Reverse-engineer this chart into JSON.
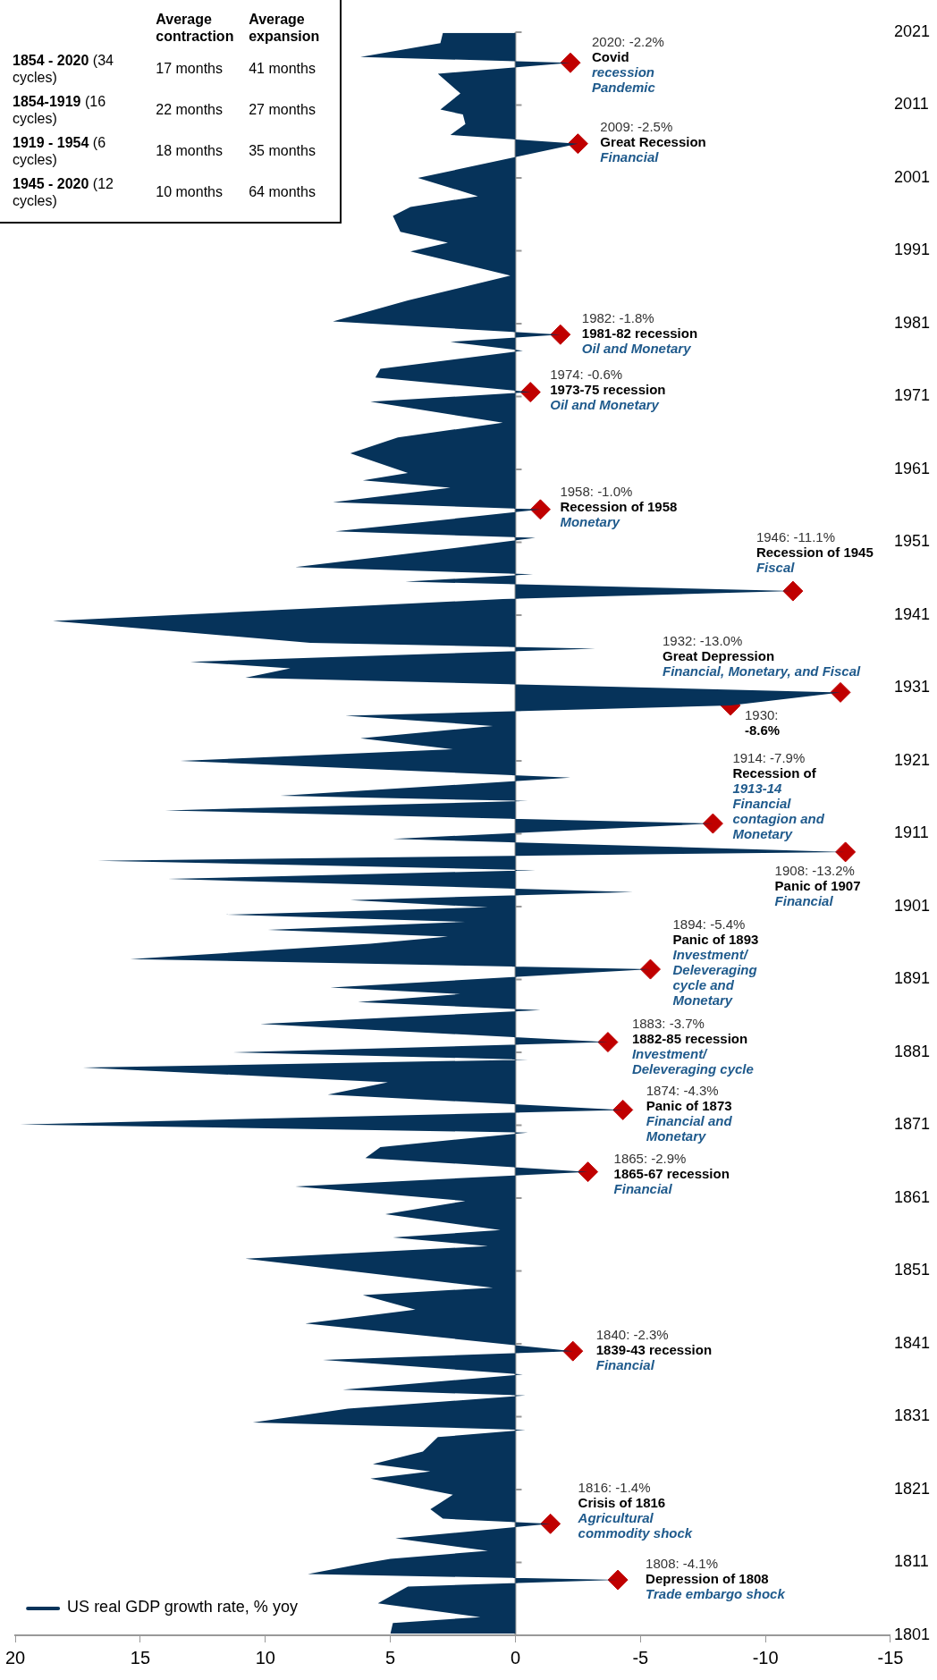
{
  "chart_data": {
    "type": "area",
    "orientation": "horizontal",
    "ylim": [
      1801,
      2021
    ],
    "yticks": [
      1801,
      1811,
      1821,
      1831,
      1841,
      1851,
      1861,
      1871,
      1881,
      1891,
      1901,
      1911,
      1921,
      1931,
      1941,
      1951,
      1961,
      1971,
      1981,
      1991,
      2001,
      2011,
      2021
    ],
    "xlim": [
      20,
      -15
    ],
    "xticks": [
      20,
      15,
      10,
      5,
      0,
      -5,
      -10,
      -15
    ],
    "legend": "bottom left",
    "series": [
      {
        "name": "US real GDP growth rate, % yoy",
        "color": "#06335a",
        "x": [
          1801.2,
          1802.7,
          1803.5,
          1805.4,
          1807.7,
          1808.6,
          1809.4,
          1810.9,
          1811.5,
          1812.6,
          1814.3,
          1816.3,
          1817.0,
          1818.3,
          1820.3,
          1822.5,
          1823.5,
          1824.5,
          1826.2,
          1828.2,
          1829.2,
          1830.2,
          1832.1,
          1833.9,
          1834.7,
          1836.8,
          1838.8,
          1840.0,
          1843.8,
          1845.7,
          1847.7,
          1848.7,
          1852.7,
          1854.4,
          1855.6,
          1856.6,
          1858.8,
          1860.6,
          1862.6,
          1864.6,
          1866.5,
          1868.0,
          1870.0,
          1871.1,
          1873.1,
          1875.2,
          1876.9,
          1878.9,
          1880.0,
          1881.0,
          1882.4,
          1884.9,
          1886.8,
          1887.9,
          1889.0,
          1889.9,
          1892.4,
          1893.8,
          1895.9,
          1896.9,
          1897.8,
          1898.9,
          1899.9,
          1900.9,
          1901.9,
          1903.0,
          1904.8,
          1906.0,
          1907.3,
          1908.5,
          1910.3,
          1912.4,
          1914.2,
          1915.5,
          1916.2,
          1918.7,
          1921.0,
          1922.6,
          1924.1,
          1925.8,
          1927.2,
          1928.6,
          1930.4,
          1932.4,
          1933.7,
          1934.6,
          1936.4,
          1937.2,
          1940.2,
          1943.2,
          1944.3,
          1945.6,
          1946.6,
          1947.6,
          1949.3,
          1951.6,
          1952.5,
          1955.5,
          1956.5,
          1958.5,
          1959.5,
          1960.5,
          1963.2,
          1965.4,
          1967.4,
          1970.3,
          1971.6,
          1973.6,
          1974.8,
          1977.3,
          1978.5,
          1979.5,
          1981.3,
          1984.2,
          1987.6,
          1990.9,
          1992.1,
          1993.6,
          1995.8,
          1997.0,
          1998.5,
          2001.0,
          2005.7,
          2006.9,
          2008.4,
          2009.7,
          2010.4,
          2012.6,
          2015.3,
          2016.8,
          2017.6,
          2019.5,
          2020.9
        ],
        "values": [
          5.0,
          4.9,
          1.4,
          5.5,
          4.3,
          -4.1,
          8.3,
          6.0,
          5.0,
          1.1,
          4.8,
          -1.4,
          2.9,
          3.4,
          2.5,
          5.8,
          3.4,
          5.7,
          3.7,
          3.1,
          -0.4,
          10.5,
          6.7,
          -0.4,
          6.9,
          -0.3,
          7.7,
          -2.3,
          8.4,
          4.0,
          6.1,
          0.9,
          10.8,
          1.1,
          4.9,
          0.6,
          5.2,
          2.0,
          8.8,
          -2.9,
          6.0,
          5.4,
          -0.5,
          19.8,
          -4.3,
          7.5,
          5.1,
          17.3,
          -0.5,
          11.3,
          -3.7,
          10.2,
          -1.0,
          6.3,
          2.2,
          7.4,
          -5.4,
          15.4,
          5.8,
          2.7,
          9.9,
          2.0,
          11.6,
          1.1,
          6.6,
          -4.7,
          13.9,
          -0.8,
          16.7,
          -13.2,
          4.9,
          -7.9,
          14.0,
          -0.5,
          9.4,
          -2.2,
          13.4,
          2.5,
          6.2,
          0.9,
          6.8,
          -8.6,
          -13.0,
          10.8,
          9.0,
          13.0,
          -3.2,
          8.2,
          18.5,
          0.5,
          -11.1,
          4.4,
          -0.7,
          8.8,
          4.6,
          -0.8,
          7.2,
          -1.0,
          7.3,
          2.6,
          6.1,
          4.3,
          6.6,
          4.7,
          0.5,
          5.8,
          -0.6,
          5.6,
          5.4,
          -0.3,
          2.6,
          -1.8,
          7.3,
          4.3,
          0.2,
          4.2,
          2.7,
          4.6,
          4.9,
          4.2,
          1.5,
          3.9,
          -2.5,
          2.6,
          2.0,
          2.1,
          3.0,
          2.2,
          3.1,
          -2.2,
          6.2,
          3.0,
          2.9
        ]
      },
      {
        "type": "scatter",
        "marker": "diamond",
        "color": "#c00000",
        "x": [
          1808.6,
          1816.3,
          1840.0,
          1864.6,
          1873.1,
          1882.4,
          1892.4,
          1908.5,
          1912.4,
          1928.6,
          1930.4,
          1944.3,
          1955.5,
          1971.6,
          1979.5,
          2005.7,
          2016.8
        ],
        "values": [
          -4.1,
          -1.4,
          -2.3,
          -2.9,
          -4.3,
          -3.7,
          -5.4,
          -13.2,
          -7.9,
          -8.6,
          -13.0,
          -11.1,
          -1.0,
          -0.6,
          -1.8,
          -2.5,
          -2.2
        ]
      }
    ],
    "annotations": [
      {
        "text": "1808: -4.1%\nDepression of 1808\nTrade embargo shock",
        "x": -4.1,
        "y": 1808.6
      },
      {
        "text": "1816: -1.4%\nCrisis of 1816\nAgricultural\ncommodity shock",
        "x": -1.4,
        "y": 1816.3
      },
      {
        "text": "1840: -2.3%\n1839-43 recession\nFinancial",
        "x": -2.3,
        "y": 1840.0
      },
      {
        "text": "1865: -2.9%\n1865-67 recession\nFinancial",
        "x": -2.9,
        "y": 1864.6
      },
      {
        "text": "1874: -4.3%\nPanic of 1873\nFinancial and\nMonetary",
        "x": -4.3,
        "y": 1873.1
      },
      {
        "text": "1883: -3.7%\n1882-85 recession\nInvestment/\nDeleveraging cycle",
        "x": -3.7,
        "y": 1882.4
      },
      {
        "text": "1894: -5.4%\nPanic of 1893\nInvestment/\nDeleveraging\ncycle and\nMonetary",
        "x": -5.4,
        "y": 1892.4
      },
      {
        "text": "1908: -13.2%\nPanic of 1907\nFinancial",
        "x": -13.2,
        "y": 1908.5
      },
      {
        "text": "1914: -7.9%\nRecession of\n1913-14\nFinancial\ncontagion and\nMonetary",
        "x": -7.9,
        "y": 1912.4
      },
      {
        "text": "1930:\n-8.6%",
        "x": -8.6,
        "y": 1928.6
      },
      {
        "text": "1932: -13.0%\nGreat Depression\nFinancial, Monetary, and Fiscal",
        "x": -13.0,
        "y": 1930.4
      },
      {
        "text": "1946: -11.1%\nRecession of 1945\nFiscal",
        "x": -11.1,
        "y": 1944.3
      },
      {
        "text": "1958: -1.0%\nRecession of 1958\nMonetary",
        "x": -1.0,
        "y": 1955.5
      },
      {
        "text": "1974: -0.6%\n1973-75 recession\nOil and Monetary",
        "x": -0.6,
        "y": 1971.6
      },
      {
        "text": "1982: -1.8%\n1981-82 recession\nOil and Monetary",
        "x": -1.8,
        "y": 1979.5
      },
      {
        "text": "2009: -2.5%\nGreat Recession\nFinancial",
        "x": -2.5,
        "y": 2005.7
      },
      {
        "text": "2020: -2.2%\nCovid\nrecession\nPandemic",
        "x": -2.2,
        "y": 2016.8
      },
      "Average contraction",
      "Average expansion",
      "1854 - 2020",
      "(34 cycles)",
      "17 months",
      "41 months",
      "1854-1919",
      "(16 cycles)",
      "22 months",
      "27 months",
      "1919 - 1954",
      "(6 cycles)",
      "18 months",
      "35 months",
      "1945 - 2020",
      "(12 cycles)",
      "10 months",
      "64 months"
    ]
  }
}
